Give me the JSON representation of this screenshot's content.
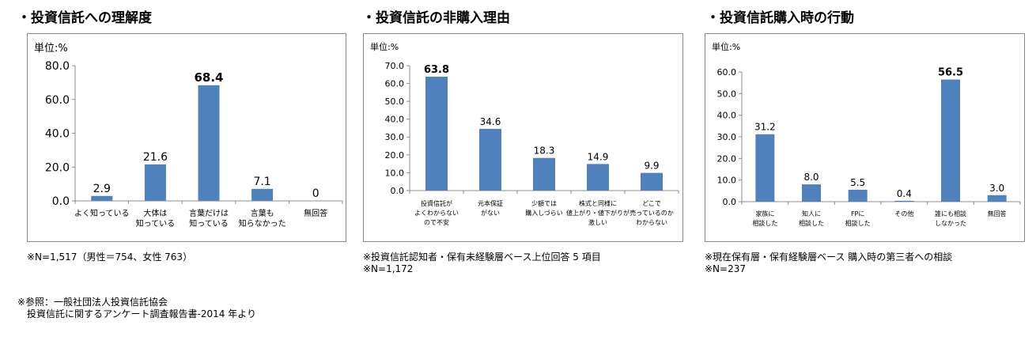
{
  "titles": [
    "・投資信託への理解度",
    "・投資信託の非購入理由",
    "・投資信託購入時の行動"
  ],
  "notes": {
    "c1": [
      "※N=1,517（男性＝754、女性 763）"
    ],
    "c2": [
      "※投資信託認知者・保有未経験層ベース上位回答 5 項目",
      "※N=1,172"
    ],
    "c3": [
      "※現在保有層・保有経験層ベース 購入時の第三者への相談",
      "※N=237"
    ]
  },
  "source": [
    "※参照：一般社団法人投資信託協会",
    "　投資信託に関するアンケート調査報告書-2014 年より"
  ],
  "chart_data": [
    {
      "type": "bar",
      "unit_label": "単位:%",
      "categories": [
        [
          "よく知っている"
        ],
        [
          "大体は",
          "知っている"
        ],
        [
          "言葉だけは",
          "知っている"
        ],
        [
          "言葉も",
          "知らなかった"
        ],
        [
          "無回答"
        ]
      ],
      "values": [
        2.9,
        21.6,
        68.4,
        7.1,
        0
      ],
      "value_labels": [
        "2.9",
        "21.6",
        "68.4",
        "7.1",
        "0"
      ],
      "highlight_index": 2,
      "yticks": [
        "0.0",
        "20.0",
        "40.0",
        "60.0",
        "80.0"
      ],
      "ylim": [
        0,
        80
      ],
      "bar_color": "#4f81bd",
      "grid": false
    },
    {
      "type": "bar",
      "unit_label": "単位:%",
      "categories": [
        [
          "投資信託が",
          "よくわからない",
          "ので不安"
        ],
        [
          "元本保証",
          "がない"
        ],
        [
          "少額では",
          "購入しづらい"
        ],
        [
          "株式と同様に",
          "値上がり・値下がりが",
          "激しい"
        ],
        [
          "どこで",
          "売っているのか",
          "わからない"
        ]
      ],
      "values": [
        63.8,
        34.6,
        18.3,
        14.9,
        9.9
      ],
      "value_labels": [
        "63.8",
        "34.6",
        "18.3",
        "14.9",
        "9.9"
      ],
      "highlight_index": 0,
      "yticks": [
        "0.0",
        "10.0",
        "20.0",
        "30.0",
        "40.0",
        "50.0",
        "60.0",
        "70.0"
      ],
      "ylim": [
        0,
        70
      ],
      "bar_color": "#4f81bd",
      "grid": false
    },
    {
      "type": "bar",
      "unit_label": "単位:%",
      "categories": [
        [
          "家族に",
          "相談した"
        ],
        [
          "知人に",
          "相談した"
        ],
        [
          "FPに",
          "相談した"
        ],
        [
          "その他"
        ],
        [
          "誰にも相談",
          "しなかった"
        ],
        [
          "無回答"
        ]
      ],
      "values": [
        31.2,
        8.0,
        5.5,
        0.4,
        56.5,
        3.0
      ],
      "value_labels": [
        "31.2",
        "8.0",
        "5.5",
        "0.4",
        "56.5",
        "3.0"
      ],
      "highlight_index": 4,
      "yticks": [
        "0.0",
        "10.0",
        "20.0",
        "30.0",
        "40.0",
        "50.0",
        "60.0"
      ],
      "ylim": [
        0,
        60
      ],
      "bar_color": "#4f81bd",
      "grid": false
    }
  ]
}
